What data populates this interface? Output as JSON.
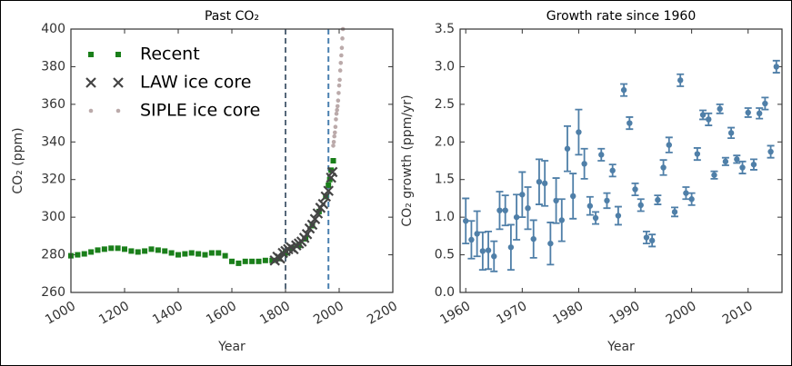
{
  "chart_data": [
    {
      "type": "scatter",
      "title": "Past CO₂",
      "xlabel": "Year",
      "ylabel": "CO₂ (ppm)",
      "xlim": [
        1000,
        2200
      ],
      "xticks": [
        1000,
        1200,
        1400,
        1600,
        1800,
        2000,
        2200
      ],
      "ylim": [
        260,
        400
      ],
      "yticks": [
        260,
        280,
        300,
        320,
        340,
        360,
        380,
        400
      ],
      "legend": "upper left",
      "vlines": [
        {
          "value": 1800,
          "color": "#56687a"
        },
        {
          "value": 1960,
          "color": "#4a80b0"
        }
      ],
      "series": [
        {
          "name": "Recent",
          "marker": "square",
          "color": "#1a7f1a",
          "x": [
            1000,
            1025,
            1050,
            1075,
            1100,
            1125,
            1150,
            1175,
            1200,
            1225,
            1250,
            1275,
            1300,
            1325,
            1350,
            1375,
            1400,
            1425,
            1450,
            1475,
            1500,
            1525,
            1550,
            1575,
            1600,
            1625,
            1650,
            1675,
            1700,
            1725,
            1750,
            1775,
            1800,
            1825,
            1850,
            1875,
            1900,
            1925,
            1950,
            1960,
            1965,
            1970,
            1978
          ],
          "values": [
            279.5,
            280,
            280.5,
            281.5,
            282.5,
            283,
            283.5,
            283.5,
            283,
            282,
            281.5,
            282,
            283,
            282.5,
            282,
            281,
            280,
            280.5,
            281,
            280.5,
            280,
            281,
            281,
            279.5,
            276.5,
            275.5,
            276.5,
            276.5,
            276.5,
            277,
            277,
            278,
            281,
            283.5,
            285,
            288.5,
            295.5,
            303,
            311,
            317,
            320,
            325,
            330
          ]
        },
        {
          "name": "LAW ice core",
          "marker": "x",
          "color": "#444444",
          "x": [
            1760,
            1770,
            1780,
            1790,
            1800,
            1810,
            1820,
            1830,
            1840,
            1850,
            1860,
            1870,
            1880,
            1890,
            1900,
            1910,
            1920,
            1930,
            1940,
            1950,
            1960,
            1970,
            1975
          ],
          "values": [
            277,
            279,
            278,
            281,
            282,
            283,
            284,
            283,
            285,
            286,
            287,
            289,
            291,
            294,
            296,
            299,
            302,
            305,
            307,
            311,
            314,
            321,
            324
          ]
        },
        {
          "name": "SIPLE ice core",
          "marker": "dot",
          "color": "#bbaaaa",
          "x": [
            1978,
            1980,
            1982,
            1984,
            1986,
            1988,
            1990,
            1992,
            1994,
            1996,
            1998,
            2000,
            2002,
            2004,
            2006,
            2008,
            2010,
            2012,
            2014
          ],
          "values": [
            338,
            340,
            343,
            345,
            348,
            352,
            355,
            357,
            359,
            362,
            366,
            370,
            373,
            378,
            382,
            386,
            390,
            395,
            400
          ]
        }
      ]
    },
    {
      "type": "errorbar",
      "title": "Growth rate since 1960",
      "xlabel": "Year",
      "ylabel": "CO₂ growth (ppm/yr)",
      "xlim": [
        1959,
        2016
      ],
      "xticks": [
        1960,
        1970,
        1980,
        1990,
        2000,
        2010
      ],
      "ylim": [
        0,
        3.5
      ],
      "yticks": [
        {
          "value": 0,
          "label": "0.0"
        },
        {
          "value": 0.5,
          "label": "0.5"
        },
        {
          "value": 1,
          "label": "1.0"
        },
        {
          "value": 1.5,
          "label": "1.5"
        },
        {
          "value": 2,
          "label": "2.0"
        },
        {
          "value": 2.5,
          "label": "2.5"
        },
        {
          "value": 3,
          "label": "3.0"
        },
        {
          "value": 3.5,
          "label": "3.5"
        }
      ],
      "color": "#4f7fa8",
      "x": [
        1960,
        1961,
        1962,
        1963,
        1964,
        1965,
        1966,
        1967,
        1968,
        1969,
        1970,
        1971,
        1972,
        1973,
        1974,
        1975,
        1976,
        1977,
        1978,
        1979,
        1980,
        1981,
        1982,
        1983,
        1984,
        1985,
        1986,
        1987,
        1988,
        1989,
        1990,
        1991,
        1992,
        1993,
        1994,
        1995,
        1996,
        1997,
        1998,
        1999,
        2000,
        2001,
        2002,
        2003,
        2004,
        2005,
        2006,
        2007,
        2008,
        2009,
        2010,
        2011,
        2012,
        2013,
        2014,
        2015
      ],
      "values": [
        0.95,
        0.7,
        0.78,
        0.55,
        0.56,
        0.48,
        1.09,
        1.09,
        0.6,
        1.0,
        1.3,
        1.12,
        0.71,
        1.47,
        1.45,
        0.65,
        1.22,
        0.96,
        1.91,
        1.28,
        2.13,
        1.71,
        1.15,
        0.99,
        1.83,
        1.22,
        1.62,
        1.02,
        2.69,
        2.25,
        1.37,
        1.16,
        0.73,
        0.69,
        1.23,
        1.66,
        1.96,
        1.07,
        2.82,
        1.32,
        1.24,
        1.84,
        2.36,
        2.3,
        1.56,
        2.44,
        1.74,
        2.12,
        1.77,
        1.66,
        2.39,
        1.7,
        2.38,
        2.51,
        1.87,
        3.0
      ],
      "errors": [
        0.3,
        0.25,
        0.3,
        0.25,
        0.25,
        0.2,
        0.25,
        0.2,
        0.3,
        0.3,
        0.3,
        0.28,
        0.25,
        0.3,
        0.3,
        0.28,
        0.3,
        0.28,
        0.3,
        0.3,
        0.3,
        0.2,
        0.12,
        0.08,
        0.08,
        0.1,
        0.08,
        0.12,
        0.08,
        0.08,
        0.08,
        0.08,
        0.08,
        0.08,
        0.06,
        0.1,
        0.1,
        0.06,
        0.08,
        0.08,
        0.08,
        0.08,
        0.06,
        0.08,
        0.05,
        0.06,
        0.05,
        0.07,
        0.05,
        0.08,
        0.06,
        0.07,
        0.07,
        0.08,
        0.08,
        0.08
      ]
    }
  ]
}
